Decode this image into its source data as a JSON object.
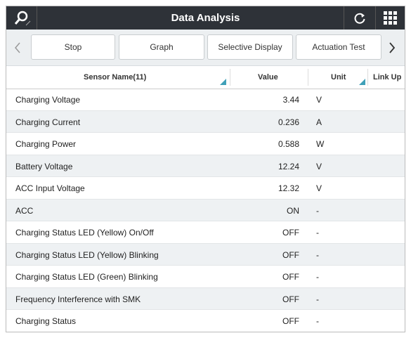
{
  "header": {
    "title": "Data Analysis"
  },
  "toolbar": {
    "buttons": [
      "Stop",
      "Graph",
      "Selective Display",
      "Actuation Test"
    ]
  },
  "table": {
    "columns": [
      "Sensor Name(11)",
      "Value",
      "Unit",
      "Link Up"
    ],
    "rows": [
      [
        "Charging Voltage",
        "3.44",
        "V"
      ],
      [
        "Charging Current",
        "0.236",
        "A"
      ],
      [
        "Charging Power",
        "0.588",
        "W"
      ],
      [
        "Battery Voltage",
        "12.24",
        "V"
      ],
      [
        "ACC Input Voltage",
        "12.32",
        "V"
      ],
      [
        "ACC",
        "ON",
        "-"
      ],
      [
        "Charging Status LED (Yellow) On/Off",
        "OFF",
        "-"
      ],
      [
        "Charging Status LED (Yellow) Blinking",
        "OFF",
        "-"
      ],
      [
        "Charging Status LED (Green) Blinking",
        "OFF",
        "-"
      ],
      [
        "Frequency Interference with SMK",
        "OFF",
        "-"
      ],
      [
        "Charging Status",
        "OFF",
        "-"
      ]
    ]
  }
}
